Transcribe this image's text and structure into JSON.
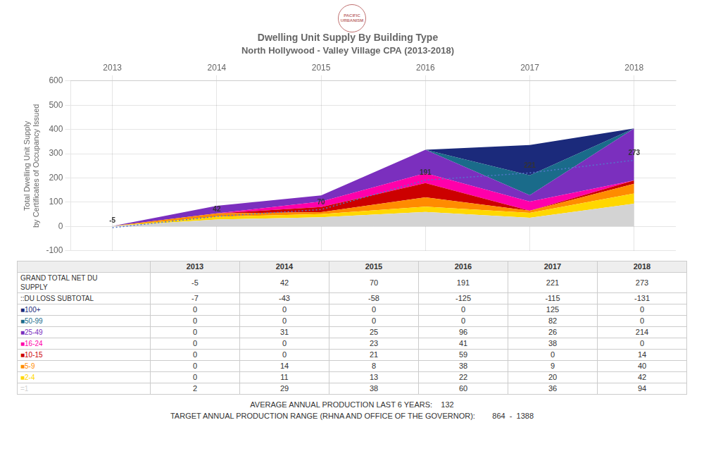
{
  "chart_data": {
    "type": "area",
    "stacked": true,
    "grid": true,
    "title": "Dwelling Unit Supply By Building Type",
    "subtitle": "North Hollywood - Valley Village CPA (2013-2018)",
    "ylabel": "Total Dwelling Unit Supply\nby Certificates of Occupancy Issued",
    "x": [
      2013,
      2014,
      2015,
      2016,
      2017,
      2018
    ],
    "xlim": [
      2012.6,
      2018.4
    ],
    "xticks": [
      2013,
      2014,
      2015,
      2016,
      2017,
      2018
    ],
    "ylim": [
      -100,
      600
    ],
    "yticks": [
      -100,
      0,
      100,
      200,
      300,
      400,
      500,
      600
    ],
    "series": [
      {
        "name": "=1",
        "color": "#d3d3d3",
        "values": [
          2,
          29,
          38,
          60,
          36,
          94
        ]
      },
      {
        "name": "■2-4",
        "color": "#ffd700",
        "values": [
          0,
          11,
          13,
          22,
          20,
          42
        ]
      },
      {
        "name": "■5-9",
        "color": "#ff8c00",
        "values": [
          0,
          14,
          8,
          38,
          9,
          40
        ]
      },
      {
        "name": "■10-15",
        "color": "#cc0000",
        "values": [
          0,
          0,
          21,
          59,
          0,
          14
        ]
      },
      {
        "name": "■16-24",
        "color": "#ff00aa",
        "values": [
          0,
          0,
          23,
          41,
          38,
          0
        ]
      },
      {
        "name": "■25-49",
        "color": "#7b2fbe",
        "values": [
          0,
          31,
          25,
          96,
          26,
          214
        ]
      },
      {
        "name": "■50-99",
        "color": "#1a6b8a",
        "values": [
          0,
          0,
          0,
          0,
          82,
          0
        ]
      },
      {
        "name": "■100+",
        "color": "#1b2a7b",
        "values": [
          0,
          0,
          0,
          0,
          125,
          0
        ]
      },
      {
        "name": "GRAND TOTAL NET DU\nSUPPLY",
        "type": "line",
        "line_style": "dotted",
        "color": "#5577cc",
        "data_labels": true,
        "values": [
          -5,
          42,
          70,
          191,
          221,
          273
        ]
      }
    ],
    "table": {
      "rows": [
        {
          "label": "::DU LOSS SUBTOTAL",
          "values": [
            -7,
            -43,
            -58,
            -125,
            -115,
            -131
          ]
        }
      ]
    },
    "notes": [
      "AVERAGE ANNUAL PRODUCTION LAST 6 YEARS:    132",
      "TARGET ANNUAL PRODUCTION RANGE (RHNA AND OFFICE OF THE GOVERNOR):        864  -  1388"
    ],
    "logo": "PACIFIC\nURBANISM"
  }
}
